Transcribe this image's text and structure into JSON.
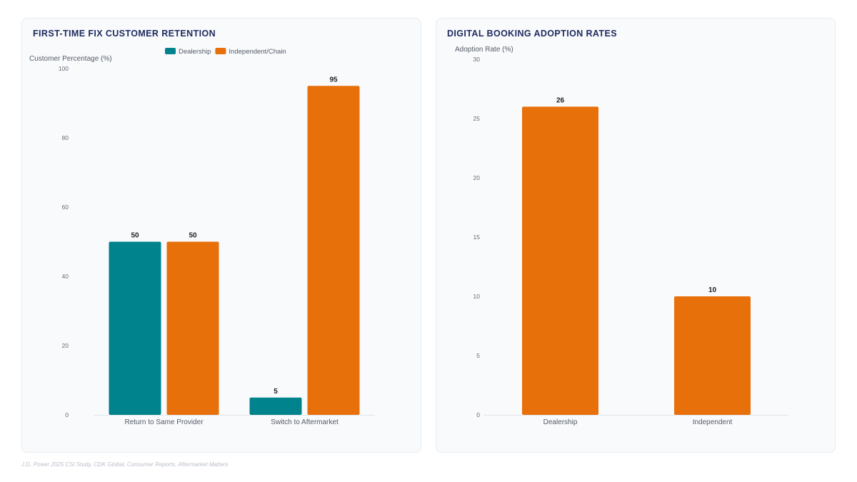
{
  "charts": [
    {
      "title": "FIRST-TIME FIX CUSTOMER RETENTION",
      "chart_data": {
        "type": "bar",
        "ylabel": "Customer Percentage (%)",
        "xlabel": "",
        "ylim": [
          0,
          100
        ],
        "yticks": [
          0,
          20,
          40,
          60,
          80,
          100
        ],
        "categories": [
          "Return to Same Provider",
          "Switch to Aftermarket"
        ],
        "series": [
          {
            "name": "Dealership",
            "values": [
              50,
              5
            ],
            "color": "#00838c"
          },
          {
            "name": "Independent/Chain",
            "values": [
              50,
              95
            ],
            "color": "#e8700a"
          }
        ],
        "legend": "top-center",
        "grid": false
      }
    },
    {
      "title": "DIGITAL BOOKING ADOPTION RATES",
      "chart_data": {
        "type": "bar",
        "ylabel": "Adoption Rate (%)",
        "xlabel": "",
        "ylim": [
          0,
          30
        ],
        "yticks": [
          0,
          5,
          10,
          15,
          20,
          25,
          30
        ],
        "categories": [
          "Dealership",
          "Independent"
        ],
        "values": [
          26,
          10
        ],
        "color": "#e8700a",
        "legend": "none",
        "grid": false
      }
    }
  ],
  "source": "J.D. Power 2025 CSI Study, CDK Global, Consumer Reports, Aftermarket Matters"
}
